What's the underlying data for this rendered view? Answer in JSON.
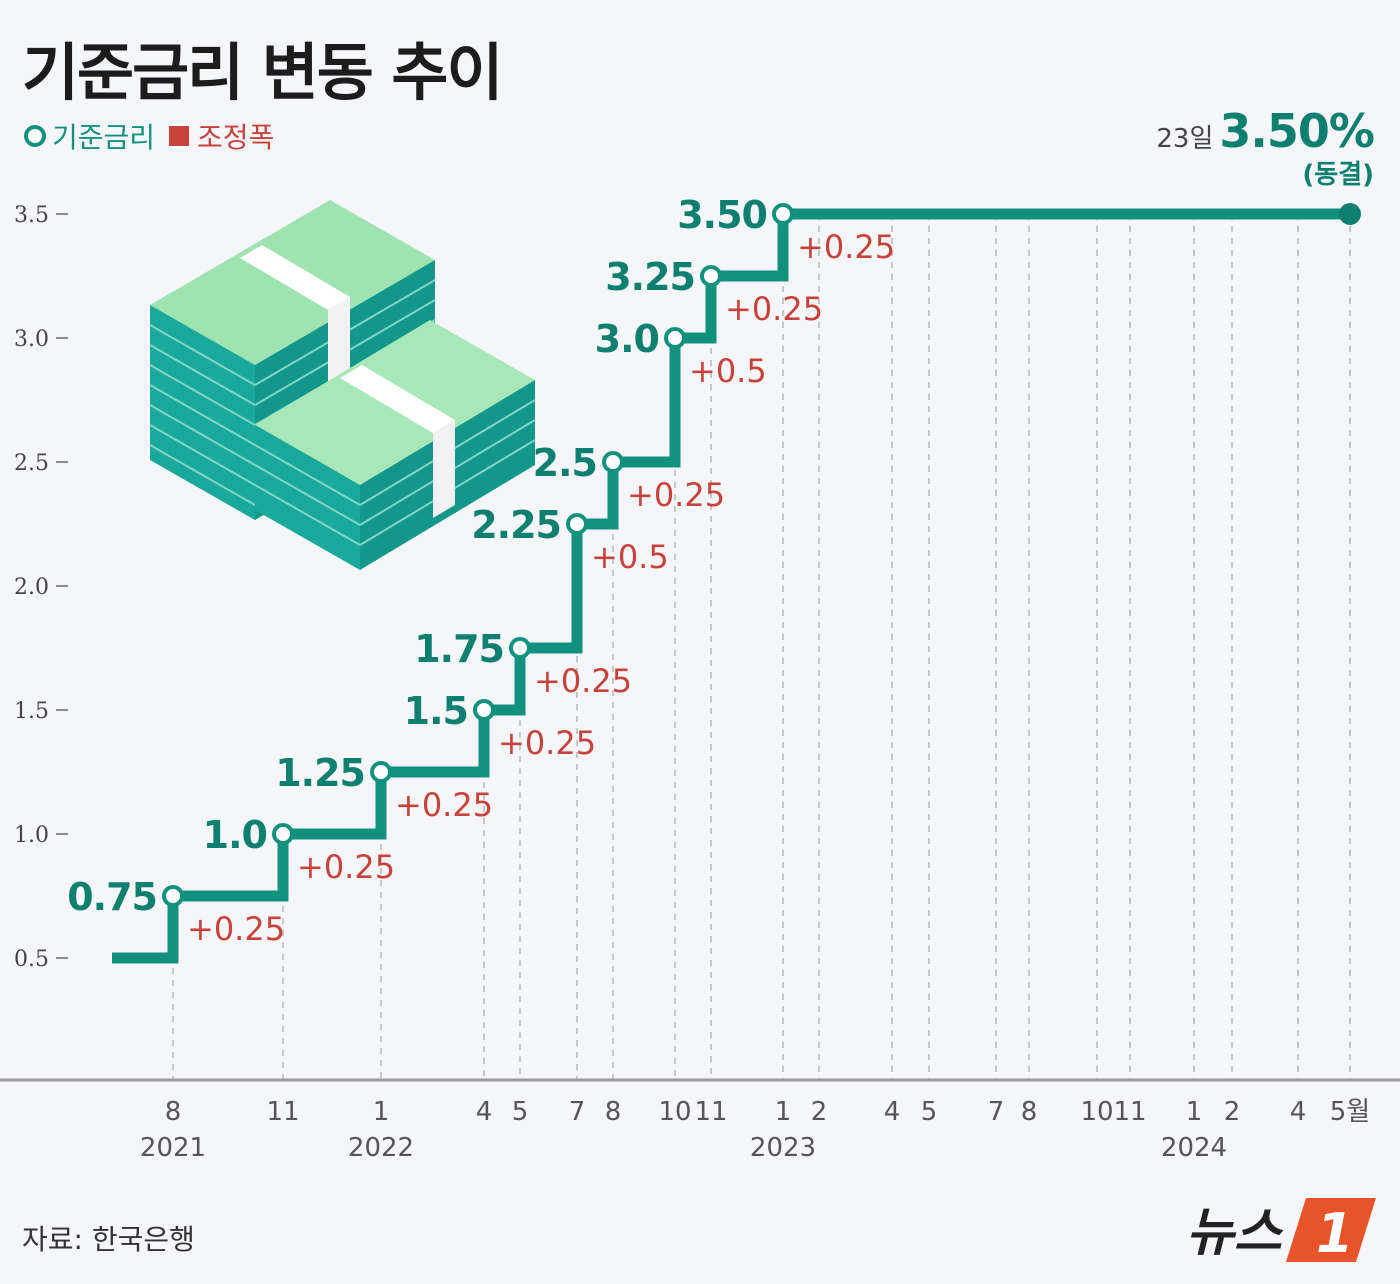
{
  "title": "기준금리 변동 추이",
  "legend": {
    "rate_label": "기준금리",
    "adjustment_label": "조정폭"
  },
  "latest": {
    "day": "23일",
    "rate": "3.50%",
    "note": "(동결)"
  },
  "source": "자료: 한국은행",
  "logo": {
    "text": "뉴스",
    "badge": "1"
  },
  "colors": {
    "rate": "#12917f",
    "adjustment": "#c8423c",
    "axis": "#9a9a9a"
  },
  "chart_data": {
    "type": "line",
    "step": true,
    "ylim": [
      0.5,
      3.5
    ],
    "yticks": [
      "0.5",
      "1.0",
      "1.5",
      "2.0",
      "2.5",
      "3.0",
      "3.5"
    ],
    "xaxis": {
      "months": [
        {
          "label": "8",
          "year": "2021"
        },
        {
          "label": "11",
          "year": "2021"
        },
        {
          "label": "1",
          "year": "2022"
        },
        {
          "label": "4",
          "year": "2022"
        },
        {
          "label": "5",
          "year": "2022"
        },
        {
          "label": "7",
          "year": "2022"
        },
        {
          "label": "8",
          "year": "2022"
        },
        {
          "label": "10",
          "year": "2022"
        },
        {
          "label": "11",
          "year": "2022"
        },
        {
          "label": "1",
          "year": "2023"
        },
        {
          "label": "2",
          "year": "2023"
        },
        {
          "label": "4",
          "year": "2023"
        },
        {
          "label": "5",
          "year": "2023"
        },
        {
          "label": "7",
          "year": "2023"
        },
        {
          "label": "8",
          "year": "2023"
        },
        {
          "label": "10",
          "year": "2023"
        },
        {
          "label": "11",
          "year": "2023"
        },
        {
          "label": "1",
          "year": "2024"
        },
        {
          "label": "2",
          "year": "2024"
        },
        {
          "label": "4",
          "year": "2024"
        },
        {
          "label": "5월",
          "year": "2024"
        }
      ],
      "year_labels": [
        "2021",
        "2022",
        "2023",
        "2024"
      ]
    },
    "series": [
      {
        "points": [
          {
            "month": 0,
            "value": 0.75,
            "label": "0.75",
            "change": "+0.25"
          },
          {
            "month": 1,
            "value": 1.0,
            "label": "1.0",
            "change": "+0.25"
          },
          {
            "month": 2,
            "value": 1.25,
            "label": "1.25",
            "change": "+0.25"
          },
          {
            "month": 3,
            "value": 1.5,
            "label": "1.5",
            "change": "+0.25"
          },
          {
            "month": 4,
            "value": 1.75,
            "label": "1.75",
            "change": "+0.25"
          },
          {
            "month": 5,
            "value": 2.25,
            "label": "2.25",
            "change": "+0.5"
          },
          {
            "month": 6,
            "value": 2.5,
            "label": "2.5",
            "change": "+0.25"
          },
          {
            "month": 7,
            "value": 3.0,
            "label": "3.0",
            "change": "+0.5"
          },
          {
            "month": 8,
            "value": 3.25,
            "label": "3.25",
            "change": "+0.25"
          },
          {
            "month": 9,
            "value": 3.5,
            "label": "3.50",
            "change": "+0.25"
          },
          {
            "month": 20,
            "value": 3.5,
            "label": "",
            "change": ""
          }
        ],
        "start_value": 0.5
      }
    ],
    "grid": "dashed vertical lines at each month"
  }
}
